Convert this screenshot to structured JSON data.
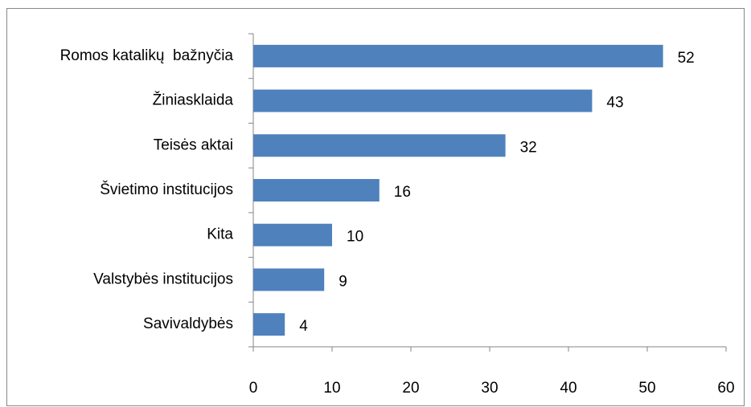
{
  "chart_data": {
    "type": "bar",
    "orientation": "horizontal",
    "categories": [
      "Romos katalikų  bažnyčia",
      "Žiniasklaida",
      "Teisės aktai",
      "Švietimo institucijos",
      "Kita",
      "Valstybės institucijos",
      "Savivaldybės"
    ],
    "values": [
      52,
      43,
      32,
      16,
      10,
      9,
      4
    ],
    "color": "#4f81bd",
    "xlim": [
      0,
      60
    ],
    "xticks": [
      0,
      10,
      20,
      30,
      40,
      50,
      60
    ],
    "grid": false
  }
}
